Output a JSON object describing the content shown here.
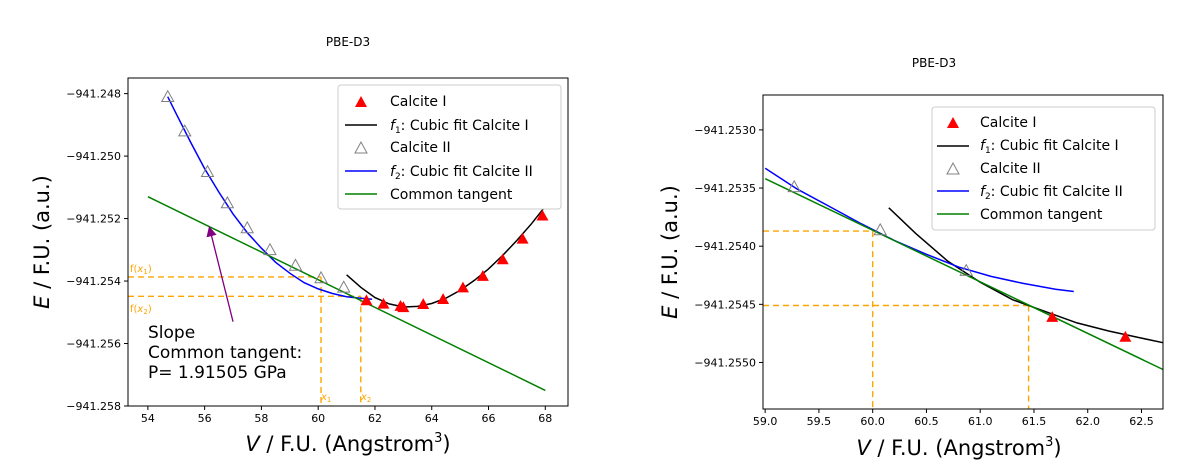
{
  "colors": {
    "calcite_i": "#ff0000",
    "fit_i": "#000000",
    "calcite_ii": "#808080",
    "fit_ii": "#0000ff",
    "tangent": "#008000",
    "guides": "#ffa500",
    "arrow": "#800080"
  },
  "chart_data": [
    {
      "type": "scatter",
      "title": "PBE-D3",
      "xlabel": "V / F.U. (Angstrom³)",
      "ylabel": "E / F.U. (a.u.)",
      "xlim": [
        53.3,
        68.8
      ],
      "ylim": [
        -941.258,
        -941.2475
      ],
      "x_ticks": [
        54,
        56,
        58,
        60,
        62,
        64,
        66,
        68
      ],
      "x_tick_labels": [
        "54",
        "56",
        "58",
        "60",
        "62",
        "64",
        "66",
        "68"
      ],
      "y_ticks": [
        -941.258,
        -941.256,
        -941.254,
        -941.252,
        -941.25,
        -941.248
      ],
      "y_tick_labels": [
        "−941.258",
        "−941.256",
        "−941.254",
        "−941.252",
        "−941.250",
        "−941.248"
      ],
      "legend": {
        "position": "top-right",
        "entries": [
          {
            "label": "Calcite I",
            "marker": "triangle-filled",
            "color": "#ff0000"
          },
          {
            "label": "f1: Cubic fit Calcite I",
            "line": true,
            "color": "#000000"
          },
          {
            "label": "Calcite II",
            "marker": "triangle-open",
            "color": "#808080"
          },
          {
            "label": "f2: Cubic fit Calcite II",
            "line": true,
            "color": "#0000ff"
          },
          {
            "label": "Common tangent",
            "line": true,
            "color": "#008000"
          }
        ]
      },
      "series": [
        {
          "name": "Calcite I",
          "kind": "points",
          "x": [
            61.7,
            62.3,
            62.9,
            63.0,
            63.7,
            64.4,
            65.1,
            65.8,
            66.5,
            67.2,
            67.9
          ],
          "y": [
            -941.25462,
            -941.25473,
            -941.2548,
            -941.25484,
            -941.25474,
            -941.25458,
            -941.25421,
            -941.25384,
            -941.25331,
            -941.25265,
            -941.25191
          ]
        },
        {
          "name": "f1: Cubic fit Calcite I",
          "kind": "line",
          "x": [
            61.0,
            61.5,
            62.0,
            62.5,
            63.0,
            63.5,
            64.0,
            64.5,
            65.0,
            65.5,
            66.0,
            66.5,
            67.0,
            67.5,
            68.0
          ],
          "y": [
            -941.2538,
            -941.2542,
            -941.25453,
            -941.25473,
            -941.25483,
            -941.25481,
            -941.25472,
            -941.25455,
            -941.2543,
            -941.25398,
            -941.25361,
            -941.25318,
            -941.2527,
            -941.25218,
            -941.25161
          ]
        },
        {
          "name": "Calcite II",
          "kind": "points",
          "x": [
            54.7,
            55.3,
            56.1,
            56.8,
            57.5,
            58.3,
            59.2,
            60.1,
            60.9
          ],
          "y": [
            -941.2481,
            -941.2492,
            -941.2505,
            -941.2515,
            -941.2523,
            -941.253,
            -941.2535,
            -941.2539,
            -941.2542
          ]
        },
        {
          "name": "f2: Cubic fit Calcite II",
          "kind": "line",
          "x": [
            54.7,
            55.0,
            55.5,
            56.0,
            56.5,
            57.0,
            57.5,
            58.0,
            58.5,
            59.0,
            59.5,
            60.0,
            60.5,
            61.0,
            61.5,
            61.9
          ],
          "y": [
            -941.2481,
            -941.24865,
            -941.24955,
            -941.2504,
            -941.25115,
            -941.25185,
            -941.25245,
            -941.25295,
            -941.2534,
            -941.25375,
            -941.25405,
            -941.25425,
            -941.2544,
            -941.2545,
            -941.25455,
            -941.25458
          ]
        },
        {
          "name": "Common tangent",
          "kind": "line",
          "x": [
            54.0,
            68.0
          ],
          "y": [
            -941.2513,
            -941.2575
          ]
        }
      ],
      "annotations": {
        "text_lines": [
          "Slope",
          "Common tangent:",
          "P= 1.91505 GPa"
        ],
        "x1_label": "x1",
        "x2_label": "x2",
        "fx1_label": "f(x1)",
        "fx2_label": "f(x2)",
        "x1": 60.1,
        "x2": 61.5,
        "fx1": -941.25387,
        "fx2": -941.25449,
        "arrow_from": [
          57.0,
          -941.2553
        ],
        "arrow_to": [
          56.2,
          -941.2524
        ]
      }
    },
    {
      "type": "scatter",
      "title": "PBE-D3",
      "xlabel": "V / F.U. (Angstrom³)",
      "ylabel": "E / F.U. (a.u.)",
      "xlim": [
        58.98,
        62.7
      ],
      "ylim": [
        -941.2554,
        -941.2527
      ],
      "x_ticks": [
        59.0,
        59.5,
        60.0,
        60.5,
        61.0,
        61.5,
        62.0,
        62.5
      ],
      "x_tick_labels": [
        "59.0",
        "59.5",
        "60.0",
        "60.5",
        "61.0",
        "61.5",
        "62.0",
        "62.5"
      ],
      "y_ticks": [
        -941.255,
        -941.2545,
        -941.254,
        -941.2535,
        -941.253
      ],
      "y_tick_labels": [
        "−941.2550",
        "−941.2545",
        "−941.2540",
        "−941.2535",
        "−941.2530"
      ],
      "legend": {
        "position": "top-right",
        "entries": [
          {
            "label": "Calcite I",
            "marker": "triangle-filled",
            "color": "#ff0000"
          },
          {
            "label": "f1: Cubic fit Calcite I",
            "line": true,
            "color": "#000000"
          },
          {
            "label": "Calcite II",
            "marker": "triangle-open",
            "color": "#808080"
          },
          {
            "label": "f2: Cubic fit Calcite II",
            "line": true,
            "color": "#0000ff"
          },
          {
            "label": "Common tangent",
            "line": true,
            "color": "#008000"
          }
        ]
      },
      "series": [
        {
          "name": "Calcite I",
          "kind": "points",
          "x": [
            61.67,
            62.35
          ],
          "y": [
            -941.25461,
            -941.25478
          ]
        },
        {
          "name": "f1: Cubic fit Calcite I",
          "kind": "line",
          "x": [
            60.15,
            60.4,
            60.7,
            61.0,
            61.3,
            61.6,
            61.9,
            62.2,
            62.5,
            62.7
          ],
          "y": [
            -941.25367,
            -941.25389,
            -941.25413,
            -941.25431,
            -941.25446,
            -941.25456,
            -941.25466,
            -941.25473,
            -941.25479,
            -941.25483
          ]
        },
        {
          "name": "Calcite II",
          "kind": "points",
          "x": [
            59.27,
            60.07,
            60.87
          ],
          "y": [
            -941.25349,
            -941.25386,
            -941.25421
          ]
        },
        {
          "name": "f2: Cubic fit Calcite II",
          "kind": "line",
          "x": [
            59.0,
            59.3,
            59.6,
            59.9,
            60.2,
            60.5,
            60.8,
            61.1,
            61.4,
            61.7,
            61.87
          ],
          "y": [
            -941.25333,
            -941.25351,
            -941.25366,
            -941.25381,
            -941.25395,
            -941.25407,
            -941.25418,
            -941.25426,
            -941.25432,
            -941.25437,
            -941.25439
          ]
        },
        {
          "name": "Common tangent",
          "kind": "line",
          "x": [
            59.0,
            62.7
          ],
          "y": [
            -941.25342,
            -941.25506
          ]
        }
      ],
      "annotations": {
        "x1": 60.0,
        "x2": 61.45,
        "fx1": -941.25387,
        "fx2": -941.25451
      }
    }
  ]
}
